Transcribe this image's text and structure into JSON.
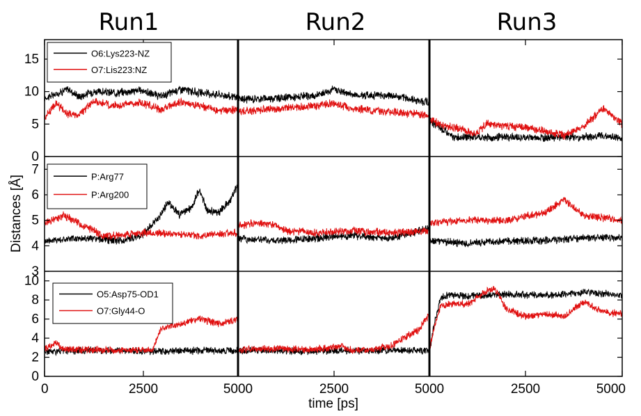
{
  "chart_data": {
    "type": "line",
    "xlabel": "time [ps]",
    "ylabel": "Distances [Å]",
    "runs": [
      {
        "title": "Run1",
        "xlim": [
          0,
          5000
        ]
      },
      {
        "title": "Run2",
        "xlim": [
          0,
          5000
        ]
      },
      {
        "title": "Run3",
        "xlim": [
          0,
          5000
        ]
      }
    ],
    "x_tick_labels": [
      "0",
      "2500",
      "5000",
      "2500",
      "5000",
      "2500",
      "5000"
    ],
    "panels": [
      {
        "ylim": [
          0,
          18
        ],
        "yticks": [
          "0",
          "5",
          "10",
          "15"
        ],
        "series": [
          {
            "name": "O6:Lys223-NZ",
            "color": "#000000",
            "runs": [
              {
                "t": [
                  0,
                  300,
                  600,
                  900,
                  1250,
                  1800,
                  2500,
                  3000,
                  3500,
                  4000,
                  4500,
                  5000
                ],
                "d": [
                  9.0,
                  9.6,
                  10.4,
                  9.2,
                  10.0,
                  9.8,
                  10.2,
                  9.2,
                  10.4,
                  9.8,
                  9.6,
                  9.0
                ]
              },
              {
                "t": [
                  0,
                  1000,
                  2000,
                  2500,
                  3000,
                  4000,
                  5000
                ],
                "d": [
                  8.8,
                  9.0,
                  9.3,
                  10.4,
                  9.5,
                  9.4,
                  8.3
                ]
              },
              {
                "t": [
                  0,
                  300,
                  600,
                  1200,
                  1500,
                  2000,
                  2500,
                  3500,
                  4000,
                  4500,
                  5000
                ],
                "d": [
                  5.5,
                  4.3,
                  3.0,
                  3.0,
                  2.9,
                  3.0,
                  2.9,
                  3.0,
                  3.0,
                  3.2,
                  2.8
                ]
              }
            ]
          },
          {
            "name": "O7:Lis223:NZ",
            "color": "#e01010",
            "runs": [
              {
                "t": [
                  0,
                  300,
                  600,
                  900,
                  1250,
                  1800,
                  2500,
                  3000,
                  3500,
                  4000,
                  4500,
                  5000
                ],
                "d": [
                  6.0,
                  8.2,
                  6.5,
                  6.4,
                  8.5,
                  7.8,
                  8.3,
                  7.2,
                  8.4,
                  7.8,
                  7.0,
                  7.2
                ]
              },
              {
                "t": [
                  0,
                  1000,
                  2000,
                  2500,
                  3000,
                  4000,
                  5000
                ],
                "d": [
                  7.0,
                  7.3,
                  7.8,
                  8.2,
                  7.4,
                  6.9,
                  6.3
                ]
              },
              {
                "t": [
                  0,
                  300,
                  600,
                  1200,
                  1500,
                  2000,
                  2500,
                  3500,
                  4000,
                  4500,
                  5000
                ],
                "d": [
                  6.0,
                  4.8,
                  4.5,
                  3.6,
                  5.0,
                  4.7,
                  4.5,
                  3.2,
                  4.6,
                  7.5,
                  5.0
                ]
              }
            ]
          }
        ]
      },
      {
        "ylim": [
          3,
          7.5
        ],
        "yticks": [
          "3",
          "4",
          "5",
          "6",
          "7"
        ],
        "series": [
          {
            "name": "P:Arg77",
            "color": "#000000",
            "runs": [
              {
                "t": [
                  0,
                  1000,
                  2000,
                  2500,
                  2900,
                  3200,
                  3500,
                  3800,
                  4000,
                  4200,
                  4500,
                  4800,
                  5000
                ],
                "d": [
                  4.2,
                  4.3,
                  4.2,
                  4.4,
                  5.0,
                  5.7,
                  5.2,
                  5.5,
                  6.2,
                  5.4,
                  5.3,
                  5.8,
                  6.4
                ]
              },
              {
                "t": [
                  0,
                  1000,
                  2000,
                  3000,
                  4000,
                  5000
                ],
                "d": [
                  4.3,
                  4.2,
                  4.3,
                  4.4,
                  4.3,
                  4.7
                ]
              },
              {
                "t": [
                  0,
                  1000,
                  2000,
                  3000,
                  4000,
                  5000
                ],
                "d": [
                  4.2,
                  4.1,
                  4.2,
                  4.2,
                  4.3,
                  4.3
                ]
              }
            ]
          },
          {
            "name": "P:Arg200",
            "color": "#e01010",
            "runs": [
              {
                "t": [
                  0,
                  500,
                  1000,
                  1500,
                  2000,
                  2500,
                  3000,
                  4000,
                  5000
                ],
                "d": [
                  4.9,
                  5.2,
                  4.8,
                  4.4,
                  4.4,
                  4.5,
                  4.5,
                  4.4,
                  4.5
                ]
              },
              {
                "t": [
                  0,
                  500,
                  1000,
                  1200,
                  2000,
                  3000,
                  4000,
                  5000
                ],
                "d": [
                  4.8,
                  4.9,
                  4.8,
                  4.6,
                  4.5,
                  4.6,
                  4.5,
                  4.6
                ]
              },
              {
                "t": [
                  0,
                  1000,
                  2000,
                  3000,
                  3500,
                  4000,
                  5000
                ],
                "d": [
                  4.9,
                  5.0,
                  5.0,
                  5.3,
                  5.8,
                  5.2,
                  5.0
                ]
              }
            ]
          }
        ]
      },
      {
        "ylim": [
          0,
          11
        ],
        "yticks": [
          "0",
          "2",
          "4",
          "6",
          "8",
          "10"
        ],
        "series": [
          {
            "name": "O5:Asp75-OD1",
            "color": "#000000",
            "runs": [
              {
                "t": [
                  0,
                  1000,
                  2000,
                  3000,
                  4000,
                  5000
                ],
                "d": [
                  2.6,
                  2.7,
                  2.7,
                  2.6,
                  2.7,
                  2.7
                ]
              },
              {
                "t": [
                  0,
                  1000,
                  2000,
                  3000,
                  4000,
                  5000
                ],
                "d": [
                  2.7,
                  2.7,
                  2.6,
                  2.7,
                  2.7,
                  2.7
                ]
              },
              {
                "t": [
                  0,
                  150,
                  300,
                  500,
                  1000,
                  2000,
                  2500,
                  3000,
                  3500,
                  4000,
                  4500,
                  5000
                ],
                "d": [
                  2.6,
                  6.0,
                  8.2,
                  8.5,
                  8.4,
                  8.6,
                  8.5,
                  8.5,
                  8.6,
                  8.8,
                  8.7,
                  8.5
                ]
              }
            ]
          },
          {
            "name": "O7:Gly44-O",
            "color": "#e01010",
            "runs": [
              {
                "t": [
                  0,
                  300,
                  500,
                  1000,
                  2000,
                  2800,
                  3000,
                  3500,
                  4000,
                  4500,
                  5000
                ],
                "d": [
                  2.8,
                  3.5,
                  2.8,
                  2.8,
                  2.7,
                  2.8,
                  5.0,
                  5.5,
                  6.0,
                  5.5,
                  6.0
                ]
              },
              {
                "t": [
                  0,
                  1000,
                  2000,
                  2700,
                  3000,
                  3500,
                  4000,
                  4300,
                  4700,
                  5000
                ],
                "d": [
                  2.8,
                  2.9,
                  2.8,
                  3.2,
                  2.7,
                  2.8,
                  3.2,
                  4.0,
                  4.8,
                  6.5
                ]
              },
              {
                "t": [
                  0,
                  150,
                  300,
                  1000,
                  1500,
                  1700,
                  2000,
                  2500,
                  3000,
                  3500,
                  4000,
                  4500,
                  5000
                ],
                "d": [
                  2.8,
                  5.5,
                  7.5,
                  7.6,
                  9.0,
                  9.2,
                  7.0,
                  6.3,
                  6.5,
                  6.3,
                  7.8,
                  6.8,
                  6.5
                ]
              }
            ]
          }
        ]
      }
    ]
  }
}
